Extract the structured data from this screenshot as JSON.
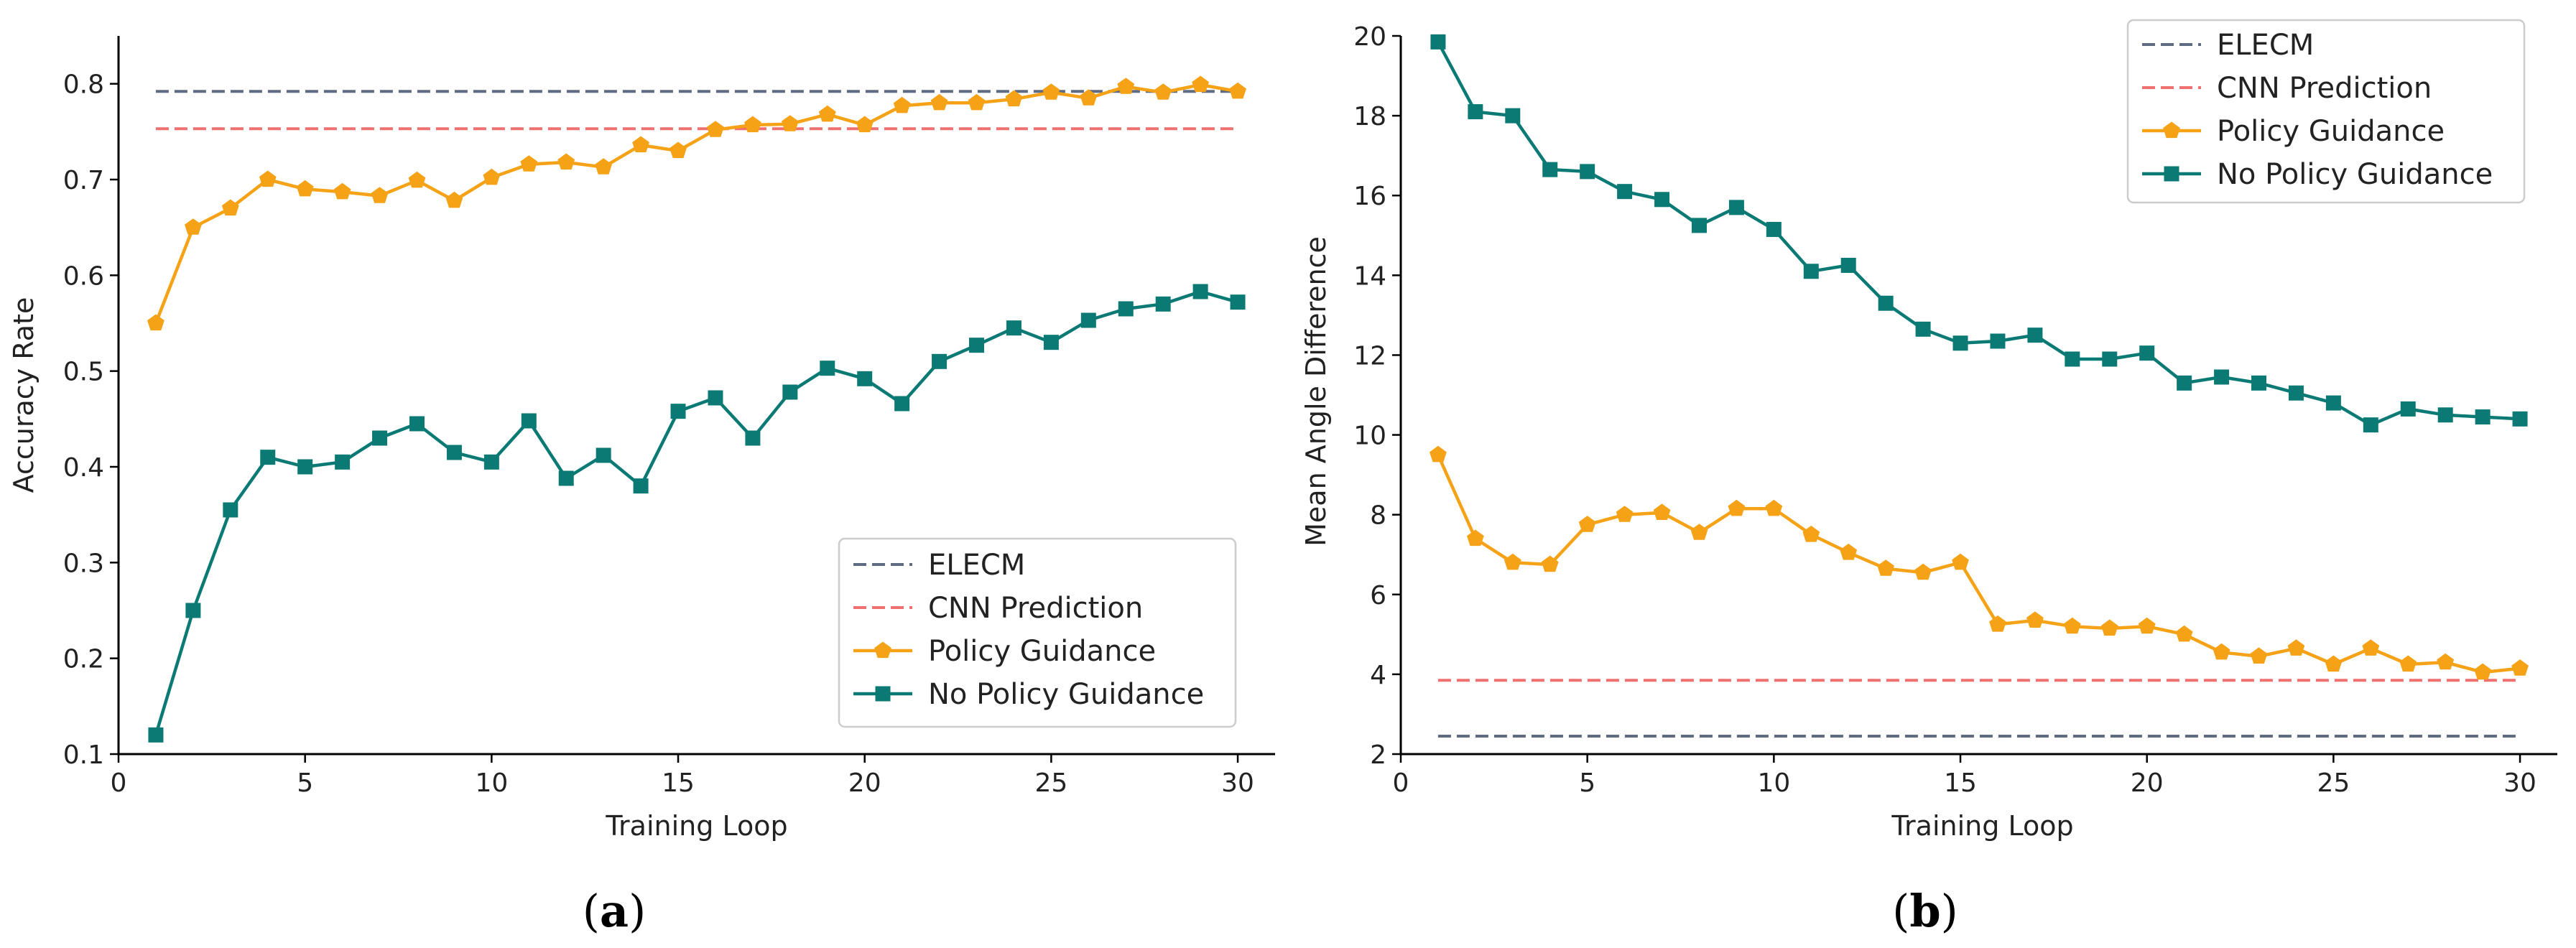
{
  "chart_data": [
    {
      "type": "line",
      "panel_label": "a",
      "xlabel": "Training Loop",
      "ylabel": "Accuracy Rate",
      "xlim": [
        0,
        31
      ],
      "ylim": [
        0.1,
        0.85
      ],
      "xticks": [
        0,
        5,
        10,
        15,
        20,
        25,
        30
      ],
      "yticks": [
        0.1,
        0.2,
        0.3,
        0.4,
        0.5,
        0.6,
        0.7,
        0.8
      ],
      "legend_position": "lower-right",
      "series": [
        {
          "name": "ELECM",
          "style": "dashed",
          "color": "#5f6b80",
          "x": [
            1,
            30
          ],
          "values": [
            0.792,
            0.792
          ]
        },
        {
          "name": "CNN Prediction",
          "style": "dashed",
          "color": "#f07070",
          "x": [
            1,
            30
          ],
          "values": [
            0.753,
            0.753
          ]
        },
        {
          "name": "Policy Guidance",
          "style": "line",
          "marker": "pentagon",
          "color": "#f5a216",
          "x": [
            1,
            2,
            3,
            4,
            5,
            6,
            7,
            8,
            9,
            10,
            11,
            12,
            13,
            14,
            15,
            16,
            17,
            18,
            19,
            20,
            21,
            22,
            23,
            24,
            25,
            26,
            27,
            28,
            29,
            30
          ],
          "values": [
            0.55,
            0.65,
            0.67,
            0.7,
            0.69,
            0.687,
            0.683,
            0.699,
            0.678,
            0.702,
            0.716,
            0.718,
            0.713,
            0.736,
            0.73,
            0.752,
            0.757,
            0.758,
            0.768,
            0.757,
            0.777,
            0.78,
            0.78,
            0.784,
            0.791,
            0.785,
            0.797,
            0.791,
            0.799,
            0.792
          ]
        },
        {
          "name": "No Policy Guidance",
          "style": "line",
          "marker": "square",
          "color": "#0b7a75",
          "x": [
            1,
            2,
            3,
            4,
            5,
            6,
            7,
            8,
            9,
            10,
            11,
            12,
            13,
            14,
            15,
            16,
            17,
            18,
            19,
            20,
            21,
            22,
            23,
            24,
            25,
            26,
            27,
            28,
            29,
            30
          ],
          "values": [
            0.12,
            0.25,
            0.355,
            0.41,
            0.4,
            0.405,
            0.43,
            0.445,
            0.415,
            0.405,
            0.448,
            0.388,
            0.412,
            0.38,
            0.458,
            0.472,
            0.43,
            0.478,
            0.503,
            0.492,
            0.466,
            0.51,
            0.527,
            0.545,
            0.53,
            0.553,
            0.565,
            0.57,
            0.583,
            0.572
          ]
        }
      ]
    },
    {
      "type": "line",
      "panel_label": "b",
      "xlabel": "Training Loop",
      "ylabel": "Mean Angle Difference",
      "xlim": [
        0,
        31
      ],
      "ylim": [
        2,
        20
      ],
      "xticks": [
        0,
        5,
        10,
        15,
        20,
        25,
        30
      ],
      "yticks": [
        2,
        4,
        6,
        8,
        10,
        12,
        14,
        16,
        18,
        20
      ],
      "legend_position": "top-right",
      "series": [
        {
          "name": "ELECM",
          "style": "dashed",
          "color": "#5f6b80",
          "x": [
            1,
            30
          ],
          "values": [
            2.45,
            2.45
          ]
        },
        {
          "name": "CNN Prediction",
          "style": "dashed",
          "color": "#f07070",
          "x": [
            1,
            30
          ],
          "values": [
            3.85,
            3.85
          ]
        },
        {
          "name": "Policy Guidance",
          "style": "line",
          "marker": "pentagon",
          "color": "#f5a216",
          "x": [
            1,
            2,
            3,
            4,
            5,
            6,
            7,
            8,
            9,
            10,
            11,
            12,
            13,
            14,
            15,
            16,
            17,
            18,
            19,
            20,
            21,
            22,
            23,
            24,
            25,
            26,
            27,
            28,
            29,
            30
          ],
          "values": [
            9.5,
            7.4,
            6.8,
            6.75,
            7.75,
            8.0,
            8.05,
            7.55,
            8.15,
            8.15,
            7.5,
            7.05,
            6.65,
            6.55,
            6.8,
            5.25,
            5.35,
            5.2,
            5.15,
            5.2,
            5.0,
            4.55,
            4.45,
            4.65,
            4.25,
            4.65,
            4.25,
            4.3,
            4.05,
            4.15
          ]
        },
        {
          "name": "No Policy Guidance",
          "style": "line",
          "marker": "square",
          "color": "#0b7a75",
          "x": [
            1,
            2,
            3,
            4,
            5,
            6,
            7,
            8,
            9,
            10,
            11,
            12,
            13,
            14,
            15,
            16,
            17,
            18,
            19,
            20,
            21,
            22,
            23,
            24,
            25,
            26,
            27,
            28,
            29,
            30
          ],
          "values": [
            19.85,
            18.1,
            18.0,
            16.65,
            16.6,
            16.1,
            15.9,
            15.25,
            15.7,
            15.15,
            14.1,
            14.25,
            13.3,
            12.65,
            12.3,
            12.35,
            12.5,
            11.9,
            11.9,
            12.05,
            11.3,
            11.45,
            11.3,
            11.05,
            10.8,
            10.25,
            10.65,
            10.5,
            10.45,
            10.4
          ]
        }
      ]
    }
  ]
}
